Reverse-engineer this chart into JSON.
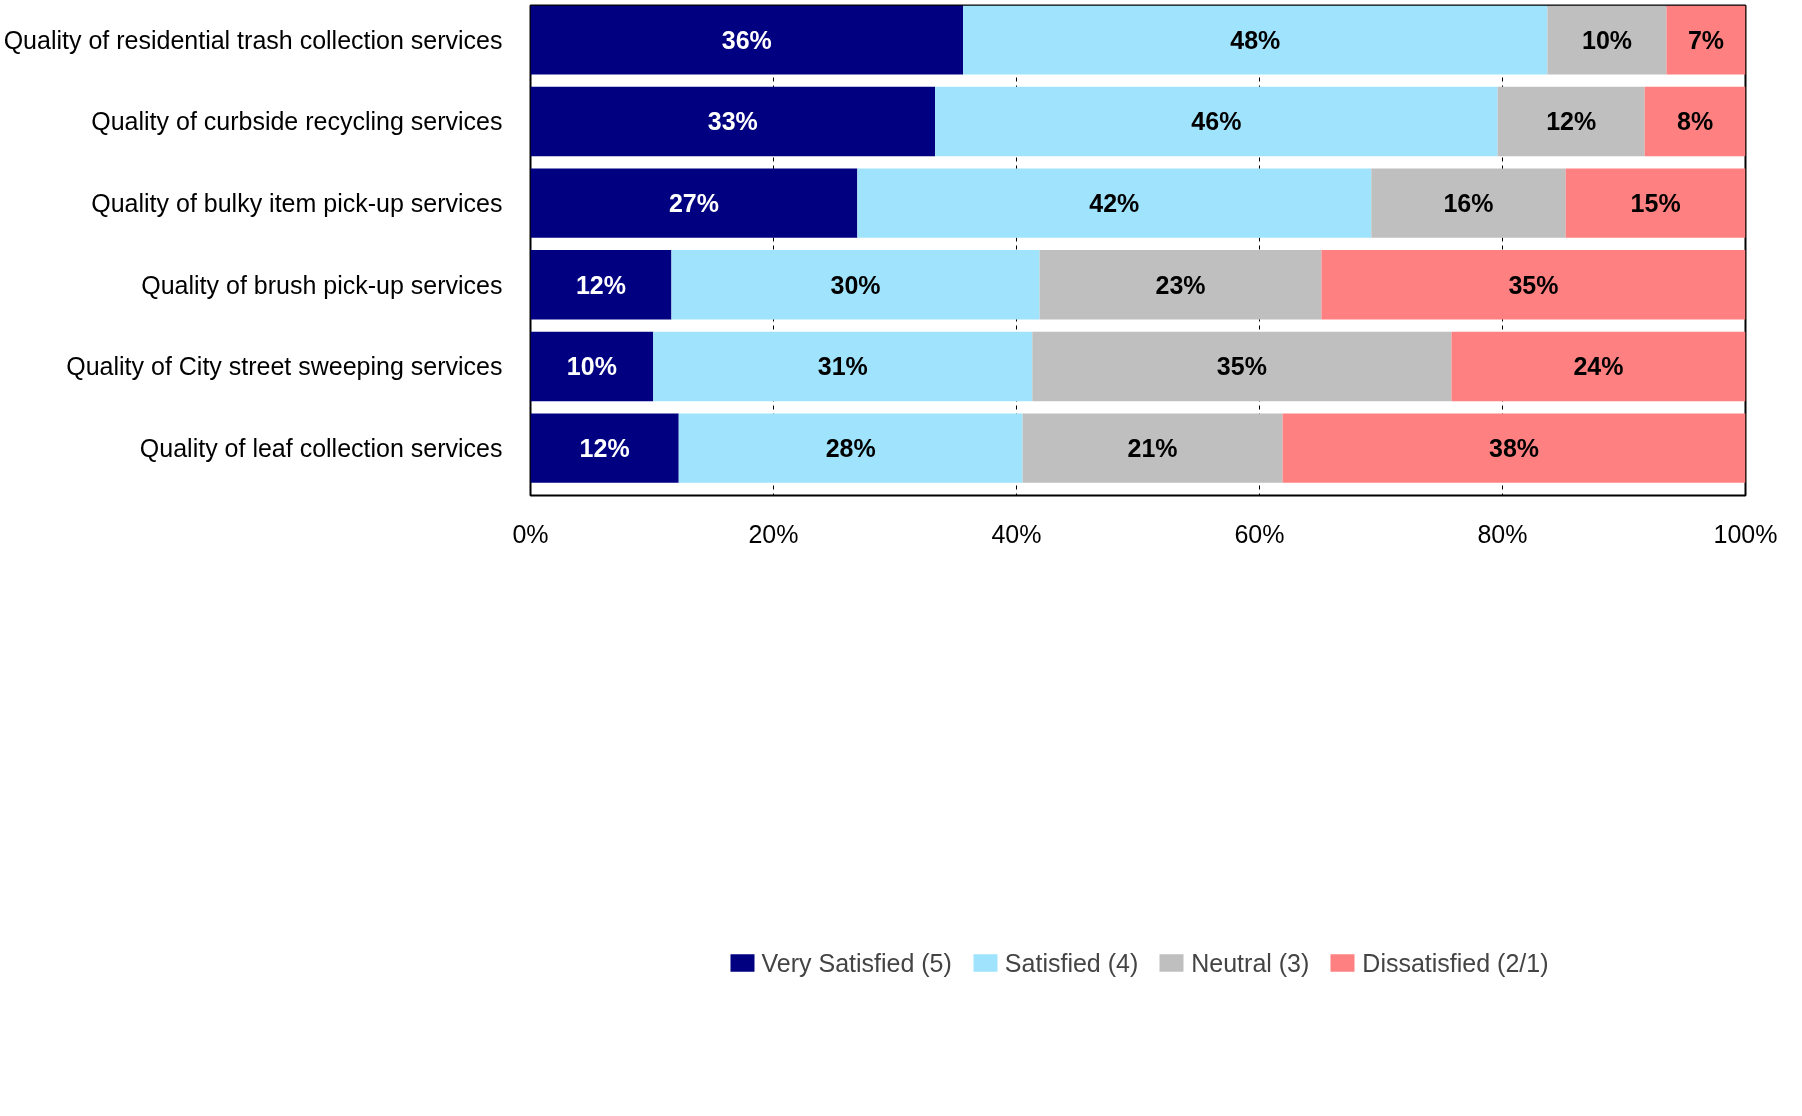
{
  "chart_data": {
    "type": "bar",
    "orientation": "horizontal",
    "stacked": true,
    "categories": [
      "Quality of residential trash collection services",
      "Quality of curbside recycling services",
      "Quality of bulky item pick-up services",
      "Quality of brush pick-up services",
      "Quality of City street sweeping services",
      "Quality of leaf collection services"
    ],
    "series": [
      {
        "name": "Very Satisfied (5)",
        "color": "#000080",
        "values": [
          35.6,
          33.3,
          26.9,
          11.6,
          10.1,
          12.2
        ],
        "value_labels": [
          "36%",
          "33%",
          "27%",
          "12%",
          "10%",
          "12%"
        ]
      },
      {
        "name": "Satisfied (4)",
        "color": "#9fe3fc",
        "values": [
          48.1,
          46.3,
          42.3,
          30.3,
          31.2,
          28.3
        ],
        "value_labels": [
          "48%",
          "46%",
          "42%",
          "30%",
          "31%",
          "28%"
        ]
      },
      {
        "name": "Neutral (3)",
        "color": "#bfbfbf",
        "values": [
          9.8,
          12.1,
          16.0,
          23.2,
          34.5,
          21.4
        ],
        "value_labels": [
          "10%",
          "12%",
          "16%",
          "23%",
          "35%",
          "21%"
        ]
      },
      {
        "name": "Dissatisfied (2/1)",
        "color": "#ff8080",
        "values": [
          6.5,
          8.3,
          14.8,
          34.9,
          24.2,
          38.1
        ],
        "value_labels": [
          "7%",
          "8%",
          "15%",
          "35%",
          "24%",
          "38%"
        ]
      }
    ],
    "xlim": [
      0,
      100
    ],
    "xticks": [
      {
        "value": 0,
        "label": "0%"
      },
      {
        "value": 20,
        "label": "20%"
      },
      {
        "value": 40,
        "label": "40%"
      },
      {
        "value": 60,
        "label": "60%"
      },
      {
        "value": 80,
        "label": "80%"
      },
      {
        "value": 100,
        "label": "100%"
      }
    ],
    "grid": "x",
    "legend": "bottom"
  }
}
